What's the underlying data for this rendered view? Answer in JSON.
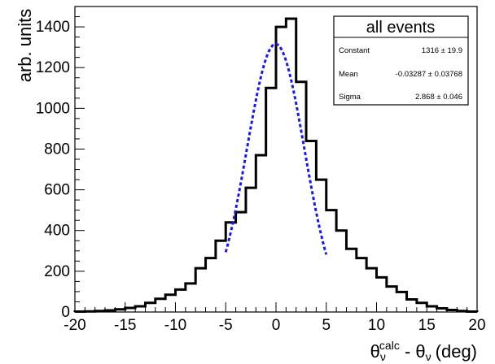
{
  "chart_data": {
    "type": "histogram",
    "xlabel": {
      "theta": "θ",
      "nu": "ν",
      "calc": "calc",
      "rest": "(deg)",
      "minus": " - "
    },
    "ylabel": "arb. units",
    "xlim": [
      -20,
      20
    ],
    "ylim": [
      0,
      1500
    ],
    "xticks": [
      -20,
      -15,
      -10,
      -5,
      0,
      5,
      10,
      15,
      20
    ],
    "yticks": [
      0,
      200,
      400,
      600,
      800,
      1000,
      1200,
      1400
    ],
    "bin_edges_start": -20,
    "bin_width": 1,
    "values": [
      2,
      3,
      5,
      8,
      13,
      20,
      28,
      45,
      65,
      85,
      110,
      140,
      215,
      265,
      350,
      440,
      490,
      610,
      770,
      1100,
      1400,
      1440,
      1130,
      840,
      650,
      500,
      400,
      310,
      265,
      215,
      170,
      125,
      98,
      62,
      45,
      28,
      18,
      10,
      5,
      2
    ],
    "fit": {
      "name": "Gaussian",
      "constant": 1316,
      "mean": -0.03287,
      "sigma": 2.868,
      "xrange": [
        -5,
        5
      ]
    },
    "stats_box": {
      "title": "all events",
      "rows": [
        {
          "label": "Constant",
          "value": "1316 ± 19.9"
        },
        {
          "label": "Mean",
          "value": "-0.03287 ± 0.03768"
        },
        {
          "label": "Sigma",
          "value": "2.868 ± 0.046"
        }
      ]
    },
    "colors": {
      "histogram": "#000000",
      "fit": "#1a1adb"
    }
  }
}
